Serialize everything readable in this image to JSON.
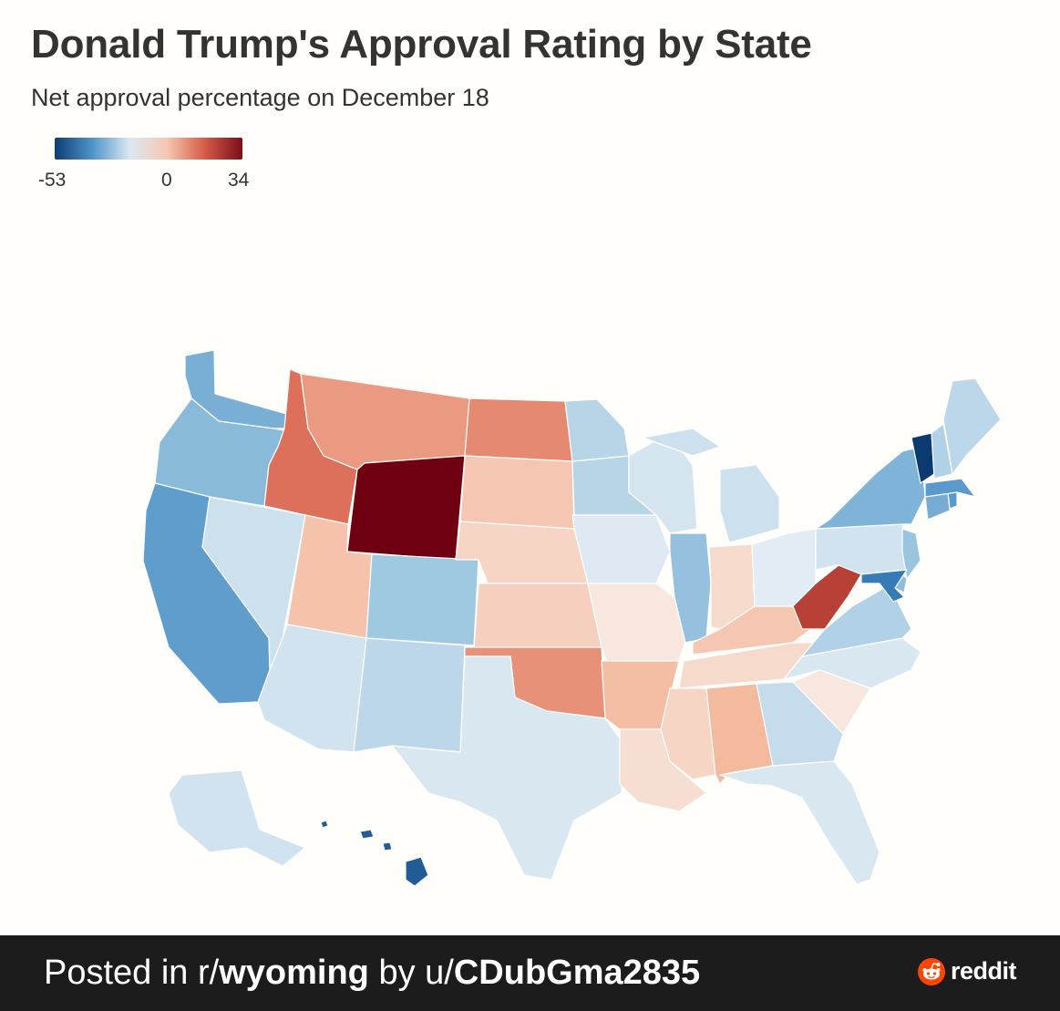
{
  "title": "Donald Trump's Approval Rating by State",
  "subtitle": "Net approval percentage on December 18",
  "legend": {
    "min_label": "-53",
    "mid_label": "0",
    "max_label": "34",
    "colors": [
      "#0d3d73",
      "#4e94c9",
      "#dbe8f2",
      "#f6c7b0",
      "#d65a46",
      "#7a0e1c"
    ]
  },
  "chart_data": {
    "type": "choropleth",
    "metric": "Net approval percentage",
    "scale": {
      "min": -53,
      "mid": 0,
      "max": 34
    },
    "states": [
      {
        "state": "WA",
        "value": -24
      },
      {
        "state": "OR",
        "value": -21
      },
      {
        "state": "CA",
        "value": -29
      },
      {
        "state": "NV",
        "value": -6
      },
      {
        "state": "ID",
        "value": 20
      },
      {
        "state": "MT",
        "value": 15
      },
      {
        "state": "WY",
        "value": 34
      },
      {
        "state": "UT",
        "value": 9
      },
      {
        "state": "AZ",
        "value": -5
      },
      {
        "state": "CO",
        "value": -17
      },
      {
        "state": "NM",
        "value": -10
      },
      {
        "state": "ND",
        "value": 17
      },
      {
        "state": "SD",
        "value": 8
      },
      {
        "state": "NE",
        "value": 5
      },
      {
        "state": "KS",
        "value": 6
      },
      {
        "state": "OK",
        "value": 16
      },
      {
        "state": "TX",
        "value": -3
      },
      {
        "state": "MN",
        "value": -11
      },
      {
        "state": "IA",
        "value": -2
      },
      {
        "state": "MO",
        "value": 1
      },
      {
        "state": "AR",
        "value": 10
      },
      {
        "state": "LA",
        "value": 3
      },
      {
        "state": "WI",
        "value": -4
      },
      {
        "state": "IL",
        "value": -19
      },
      {
        "state": "MI",
        "value": -6
      },
      {
        "state": "IN",
        "value": 4
      },
      {
        "state": "OH",
        "value": -1
      },
      {
        "state": "KY",
        "value": 8
      },
      {
        "state": "TN",
        "value": 4
      },
      {
        "state": "MS",
        "value": 5
      },
      {
        "state": "AL",
        "value": 11
      },
      {
        "state": "GA",
        "value": -8
      },
      {
        "state": "FL",
        "value": -3
      },
      {
        "state": "SC",
        "value": 1
      },
      {
        "state": "NC",
        "value": -3
      },
      {
        "state": "VA",
        "value": -13
      },
      {
        "state": "WV",
        "value": 26
      },
      {
        "state": "PA",
        "value": -5
      },
      {
        "state": "NY",
        "value": -23
      },
      {
        "state": "NJ",
        "value": -18
      },
      {
        "state": "DE",
        "value": -20
      },
      {
        "state": "MD",
        "value": -38
      },
      {
        "state": "CT",
        "value": -25
      },
      {
        "state": "RI",
        "value": -30
      },
      {
        "state": "MA",
        "value": -30
      },
      {
        "state": "VT",
        "value": -53
      },
      {
        "state": "NH",
        "value": -13
      },
      {
        "state": "ME",
        "value": -10
      },
      {
        "state": "AK",
        "value": -5
      },
      {
        "state": "HI",
        "value": -45
      }
    ]
  },
  "footer": {
    "posted_in": "Posted in r/",
    "subreddit": "wyoming",
    "by": " by u/",
    "user": "CDubGma2835",
    "brand": "reddit",
    "brand_color": "#ff4500"
  }
}
